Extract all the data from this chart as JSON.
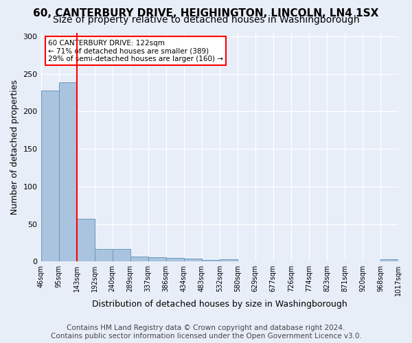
{
  "title": "60, CANTERBURY DRIVE, HEIGHINGTON, LINCOLN, LN4 1SX",
  "subtitle": "Size of property relative to detached houses in Washingborough",
  "xlabel": "Distribution of detached houses by size in Washingborough",
  "ylabel": "Number of detached properties",
  "bar_color": "#aac4e0",
  "bar_edge_color": "#6699bb",
  "bins": [
    "46sqm",
    "95sqm",
    "143sqm",
    "192sqm",
    "240sqm",
    "289sqm",
    "337sqm",
    "386sqm",
    "434sqm",
    "483sqm",
    "532sqm",
    "580sqm",
    "629sqm",
    "677sqm",
    "726sqm",
    "774sqm",
    "823sqm",
    "871sqm",
    "920sqm",
    "968sqm",
    "1017sqm"
  ],
  "values": [
    228,
    239,
    57,
    17,
    17,
    7,
    6,
    5,
    4,
    2,
    3,
    0,
    0,
    0,
    0,
    0,
    0,
    0,
    0,
    3
  ],
  "vline_x": 2.0,
  "annotation_text": "60 CANTERBURY DRIVE: 122sqm\n← 71% of detached houses are smaller (389)\n29% of semi-detached houses are larger (160) →",
  "annotation_box_color": "white",
  "annotation_box_edge_color": "red",
  "vline_color": "red",
  "ylim": [
    0,
    305
  ],
  "yticks": [
    0,
    50,
    100,
    150,
    200,
    250,
    300
  ],
  "background_color": "#e8eef8",
  "grid_color": "white",
  "footer_text": "Contains HM Land Registry data © Crown copyright and database right 2024.\nContains public sector information licensed under the Open Government Licence v3.0.",
  "title_fontsize": 11,
  "subtitle_fontsize": 10,
  "xlabel_fontsize": 9,
  "ylabel_fontsize": 9,
  "footer_fontsize": 7.5
}
